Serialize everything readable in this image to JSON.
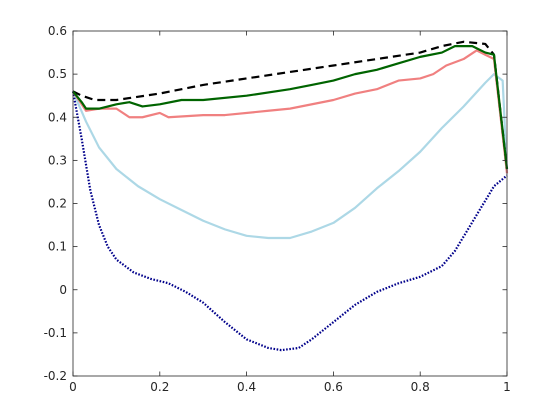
{
  "chart_data": {
    "type": "line",
    "title": "",
    "xlabel": "",
    "ylabel": "",
    "xlim": [
      0,
      1
    ],
    "ylim": [
      -0.2,
      0.6
    ],
    "xticks": [
      0,
      0.2,
      0.4,
      0.6,
      0.8,
      1
    ],
    "xtick_labels": [
      "0",
      "0.2",
      "0.4",
      "0.6",
      "0.8",
      "1"
    ],
    "yticks": [
      -0.2,
      -0.1,
      0,
      0.1,
      0.2,
      0.3,
      0.4,
      0.5,
      0.6
    ],
    "ytick_labels": [
      "-0.2",
      "-0.1",
      "0",
      "0.1",
      "0.2",
      "0.3",
      "0.4",
      "0.5",
      "0.6"
    ],
    "grid": false,
    "legend": "none",
    "series": [
      {
        "color": "#000000",
        "style": "dashed",
        "points": [
          [
            0,
            0.46
          ],
          [
            0.02,
            0.45
          ],
          [
            0.05,
            0.44
          ],
          [
            0.1,
            0.44
          ],
          [
            0.2,
            0.455
          ],
          [
            0.3,
            0.475
          ],
          [
            0.4,
            0.49
          ],
          [
            0.5,
            0.505
          ],
          [
            0.6,
            0.52
          ],
          [
            0.7,
            0.535
          ],
          [
            0.8,
            0.55
          ],
          [
            0.85,
            0.565
          ],
          [
            0.9,
            0.575
          ],
          [
            0.95,
            0.57
          ],
          [
            0.97,
            0.545
          ],
          [
            1.0,
            0.28
          ]
        ]
      },
      {
        "color": "#006400",
        "style": "solid",
        "points": [
          [
            0,
            0.46
          ],
          [
            0.02,
            0.435
          ],
          [
            0.03,
            0.42
          ],
          [
            0.06,
            0.42
          ],
          [
            0.1,
            0.43
          ],
          [
            0.13,
            0.435
          ],
          [
            0.16,
            0.425
          ],
          [
            0.2,
            0.43
          ],
          [
            0.25,
            0.44
          ],
          [
            0.3,
            0.44
          ],
          [
            0.4,
            0.45
          ],
          [
            0.5,
            0.465
          ],
          [
            0.55,
            0.475
          ],
          [
            0.6,
            0.485
          ],
          [
            0.65,
            0.5
          ],
          [
            0.7,
            0.51
          ],
          [
            0.75,
            0.525
          ],
          [
            0.8,
            0.54
          ],
          [
            0.85,
            0.55
          ],
          [
            0.88,
            0.565
          ],
          [
            0.92,
            0.565
          ],
          [
            0.95,
            0.55
          ],
          [
            0.97,
            0.545
          ],
          [
            1.0,
            0.28
          ]
        ]
      },
      {
        "color": "#f08080",
        "style": "solid",
        "points": [
          [
            0,
            0.46
          ],
          [
            0.03,
            0.415
          ],
          [
            0.06,
            0.42
          ],
          [
            0.1,
            0.42
          ],
          [
            0.13,
            0.4
          ],
          [
            0.16,
            0.4
          ],
          [
            0.2,
            0.41
          ],
          [
            0.22,
            0.4
          ],
          [
            0.3,
            0.405
          ],
          [
            0.35,
            0.405
          ],
          [
            0.45,
            0.415
          ],
          [
            0.5,
            0.42
          ],
          [
            0.6,
            0.44
          ],
          [
            0.65,
            0.455
          ],
          [
            0.7,
            0.465
          ],
          [
            0.75,
            0.485
          ],
          [
            0.8,
            0.49
          ],
          [
            0.83,
            0.5
          ],
          [
            0.86,
            0.52
          ],
          [
            0.9,
            0.535
          ],
          [
            0.93,
            0.555
          ],
          [
            0.95,
            0.545
          ],
          [
            0.97,
            0.535
          ],
          [
            1.0,
            0.27
          ]
        ]
      },
      {
        "color": "#add8e6",
        "style": "solid",
        "points": [
          [
            0,
            0.46
          ],
          [
            0.03,
            0.39
          ],
          [
            0.06,
            0.33
          ],
          [
            0.1,
            0.28
          ],
          [
            0.15,
            0.24
          ],
          [
            0.2,
            0.21
          ],
          [
            0.25,
            0.185
          ],
          [
            0.3,
            0.16
          ],
          [
            0.35,
            0.14
          ],
          [
            0.4,
            0.125
          ],
          [
            0.45,
            0.12
          ],
          [
            0.5,
            0.12
          ],
          [
            0.55,
            0.135
          ],
          [
            0.6,
            0.155
          ],
          [
            0.65,
            0.19
          ],
          [
            0.7,
            0.235
          ],
          [
            0.75,
            0.275
          ],
          [
            0.8,
            0.32
          ],
          [
            0.85,
            0.375
          ],
          [
            0.9,
            0.425
          ],
          [
            0.95,
            0.48
          ],
          [
            0.97,
            0.5
          ],
          [
            0.99,
            0.485
          ],
          [
            1.0,
            0.27
          ]
        ]
      },
      {
        "color": "#00008b",
        "style": "dotted",
        "points": [
          [
            0,
            0.46
          ],
          [
            0.02,
            0.35
          ],
          [
            0.04,
            0.23
          ],
          [
            0.06,
            0.15
          ],
          [
            0.08,
            0.1
          ],
          [
            0.1,
            0.07
          ],
          [
            0.14,
            0.04
          ],
          [
            0.18,
            0.025
          ],
          [
            0.22,
            0.015
          ],
          [
            0.26,
            -0.005
          ],
          [
            0.3,
            -0.03
          ],
          [
            0.35,
            -0.075
          ],
          [
            0.4,
            -0.115
          ],
          [
            0.45,
            -0.135
          ],
          [
            0.48,
            -0.14
          ],
          [
            0.52,
            -0.135
          ],
          [
            0.55,
            -0.115
          ],
          [
            0.6,
            -0.075
          ],
          [
            0.65,
            -0.035
          ],
          [
            0.7,
            -0.005
          ],
          [
            0.75,
            0.015
          ],
          [
            0.8,
            0.03
          ],
          [
            0.85,
            0.055
          ],
          [
            0.88,
            0.09
          ],
          [
            0.91,
            0.14
          ],
          [
            0.94,
            0.19
          ],
          [
            0.97,
            0.24
          ],
          [
            1.0,
            0.265
          ]
        ]
      }
    ]
  }
}
